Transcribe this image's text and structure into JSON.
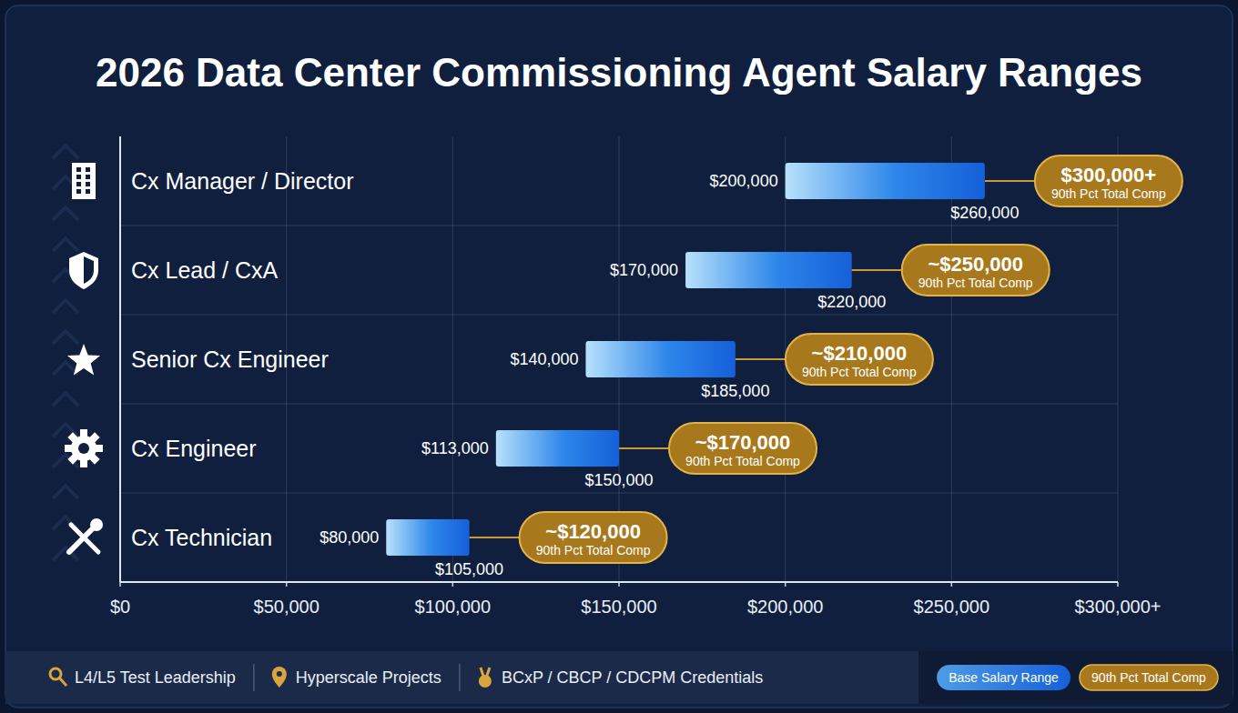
{
  "chart_data": {
    "type": "bar",
    "orientation": "horizontal",
    "title": "2026 Data Center Commissioning Agent Salary Ranges",
    "categories": [
      "Cx Manager / Director",
      "Cx Lead / CxA",
      "Senior Cx Engineer",
      "Cx Engineer",
      "Cx Technician"
    ],
    "series": [
      {
        "name": "Base Salary Range",
        "type": "range",
        "color": "#1560d8",
        "starts": [
          200000,
          170000,
          140000,
          113000,
          80000
        ],
        "start_labels": [
          "$200,000",
          "$170,000",
          "$140,000",
          "$113,000",
          "$80,000"
        ],
        "values": [
          260000,
          220000,
          185000,
          150000,
          105000
        ],
        "value_labels": [
          "$260,000",
          "$220,000",
          "$185,000",
          "$150,000",
          "$105,000"
        ]
      },
      {
        "name": "90th Pct Total Comp",
        "type": "badge",
        "color": "#a8791c",
        "values": [
          300000,
          250000,
          210000,
          170000,
          120000
        ],
        "value_labels": [
          "$300,000+",
          "~$250,000",
          "~$210,000",
          "~$170,000",
          "~$120,000"
        ]
      }
    ],
    "xlim": [
      0,
      300000
    ],
    "xticks": [
      {
        "value": 0,
        "label": "$0"
      },
      {
        "value": 50000,
        "label": "$50,000"
      },
      {
        "value": 100000,
        "label": "$100,000"
      },
      {
        "value": 150000,
        "label": "$150,000"
      },
      {
        "value": 200000,
        "label": "$200,000"
      },
      {
        "value": 250000,
        "label": "$250,000"
      },
      {
        "value": 300000,
        "label": "$300,000+"
      }
    ],
    "grid": true,
    "data_labels": true,
    "legend": "lower right",
    "footnotes": [
      "L4/L5 Test Leadership",
      "Hyperscale Projects",
      "BCxP / CBCP / CDCPM Credentials"
    ]
  }
}
